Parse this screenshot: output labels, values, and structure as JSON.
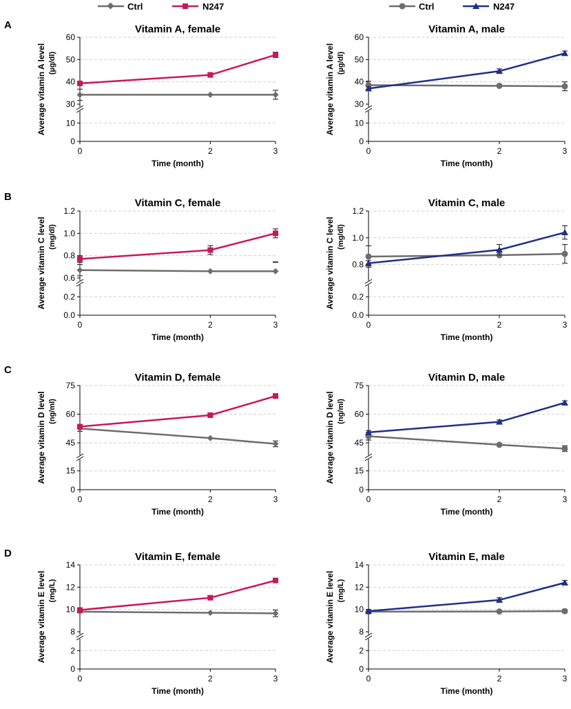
{
  "panel_letters": [
    "A",
    "B",
    "C",
    "D"
  ],
  "legends": [
    {
      "items": [
        {
          "name": "Ctrl",
          "color": "#6d6d6d",
          "marker": "diamond"
        },
        {
          "name": "N247",
          "color": "#c8175d",
          "marker": "square"
        }
      ]
    },
    {
      "items": [
        {
          "name": "Ctrl",
          "color": "#6d6d6d",
          "marker": "circle"
        },
        {
          "name": "N247",
          "color": "#1f2f8c",
          "marker": "triangle"
        }
      ]
    }
  ],
  "chart_data": [
    {
      "type": "line",
      "title": "Vitamin A, female",
      "xlabel": "Time (month)",
      "ylabel_main": "Average vitamin A level",
      "ylabel_unit": "(µg/dl)",
      "x": [
        0,
        2,
        3
      ],
      "xticks": [
        "0",
        "2",
        "3"
      ],
      "y_lower_ticks": [
        0,
        10
      ],
      "y_upper_ticks": [
        30,
        40,
        50,
        60
      ],
      "y_lower_range": [
        0,
        15
      ],
      "y_upper_range": [
        30,
        60
      ],
      "grid": true,
      "series": [
        {
          "name": "Ctrl",
          "color": "#6d6d6d",
          "marker": "diamond",
          "values": [
            34.2,
            34.2,
            34.2
          ],
          "errors": [
            2.5,
            0,
            2.0
          ]
        },
        {
          "name": "N247",
          "color": "#c8175d",
          "marker": "square",
          "values": [
            39.3,
            43.1,
            52.1
          ],
          "errors": [
            0.8,
            1.0,
            1.2
          ]
        }
      ]
    },
    {
      "type": "line",
      "title": "Vitamin A, male",
      "xlabel": "Time (month)",
      "ylabel_main": "Average vitamin A level",
      "ylabel_unit": "(µg/dl)",
      "x": [
        0,
        2,
        3
      ],
      "xticks": [
        "0",
        "2",
        "3"
      ],
      "y_lower_ticks": [
        0,
        10
      ],
      "y_upper_ticks": [
        30,
        40,
        50,
        60
      ],
      "y_lower_range": [
        0,
        15
      ],
      "y_upper_range": [
        30,
        60
      ],
      "grid": true,
      "series": [
        {
          "name": "Ctrl",
          "color": "#6d6d6d",
          "marker": "circle",
          "values": [
            38.5,
            38.2,
            38.0
          ],
          "errors": [
            1.8,
            0,
            2.0
          ]
        },
        {
          "name": "N247",
          "color": "#1f2f8c",
          "marker": "triangle",
          "values": [
            37.0,
            44.8,
            52.8
          ],
          "errors": [
            0.8,
            1.0,
            1.0
          ]
        }
      ]
    },
    {
      "type": "line",
      "title": "Vitamin C, female",
      "xlabel": "Time (month)",
      "ylabel_main": "Average vitamin C level",
      "ylabel_unit": "(mg/dl)",
      "x": [
        0,
        2,
        3
      ],
      "xticks": [
        "0",
        "2",
        "3"
      ],
      "y_lower_ticks": [
        0.0,
        0.2
      ],
      "y_upper_ticks": [
        0.6,
        0.8,
        1.0,
        1.2
      ],
      "y_lower_range": [
        0,
        0.3
      ],
      "y_upper_range": [
        0.6,
        1.2
      ],
      "grid": true,
      "tick_decimals": 1,
      "series": [
        {
          "name": "Ctrl",
          "color": "#6d6d6d",
          "marker": "diamond",
          "values": [
            0.67,
            0.66,
            0.66
          ],
          "errors": [
            0.05,
            0,
            0.08
          ]
        },
        {
          "name": "N247",
          "color": "#c8175d",
          "marker": "square",
          "values": [
            0.77,
            0.85,
            1.0
          ],
          "errors": [
            0.03,
            0.04,
            0.04
          ]
        }
      ]
    },
    {
      "type": "line",
      "title": "Vitamin C, male",
      "xlabel": "Time (month)",
      "ylabel_main": "Average vitamin C level",
      "ylabel_unit": "(mg/dl)",
      "x": [
        0,
        2,
        3
      ],
      "xticks": [
        "0",
        "2",
        "3"
      ],
      "y_lower_ticks": [
        0.0,
        0.2
      ],
      "y_upper_ticks": [
        0.8,
        1.0,
        1.2
      ],
      "y_lower_range": [
        0,
        0.3
      ],
      "y_upper_range": [
        0.7,
        1.2
      ],
      "grid": true,
      "tick_decimals": 1,
      "series": [
        {
          "name": "Ctrl",
          "color": "#6d6d6d",
          "marker": "circle",
          "values": [
            0.86,
            0.87,
            0.88
          ],
          "errors": [
            0.08,
            0,
            0.07
          ]
        },
        {
          "name": "N247",
          "color": "#1f2f8c",
          "marker": "triangle",
          "values": [
            0.81,
            0.91,
            1.04
          ],
          "errors": [
            0.02,
            0.04,
            0.05
          ]
        }
      ]
    },
    {
      "type": "line",
      "title": "Vitamin D, female",
      "xlabel": "Time (month)",
      "ylabel_main": "Average vitamin D level",
      "ylabel_unit": "(ng/ml)",
      "x": [
        0,
        2,
        3
      ],
      "xticks": [
        "0",
        "2",
        "3"
      ],
      "y_lower_ticks": [
        0,
        15
      ],
      "y_upper_ticks": [
        45,
        60,
        75
      ],
      "y_lower_range": [
        0,
        22
      ],
      "y_upper_range": [
        40,
        75
      ],
      "grid": true,
      "series": [
        {
          "name": "Ctrl",
          "color": "#6d6d6d",
          "marker": "diamond",
          "values": [
            52.5,
            47.5,
            44.5
          ],
          "errors": [
            1.5,
            0,
            1.5
          ]
        },
        {
          "name": "N247",
          "color": "#c8175d",
          "marker": "square",
          "values": [
            53.5,
            59.5,
            69.5
          ],
          "errors": [
            1.0,
            1.2,
            1.2
          ]
        }
      ]
    },
    {
      "type": "line",
      "title": "Vitamin D, male",
      "xlabel": "Time (month)",
      "ylabel_main": "Average vitamin D level",
      "ylabel_unit": "(ng/ml)",
      "x": [
        0,
        2,
        3
      ],
      "xticks": [
        "0",
        "2",
        "3"
      ],
      "y_lower_ticks": [
        0,
        15
      ],
      "y_upper_ticks": [
        45,
        60,
        75
      ],
      "y_lower_range": [
        0,
        22
      ],
      "y_upper_range": [
        40,
        75
      ],
      "grid": true,
      "series": [
        {
          "name": "Ctrl",
          "color": "#6d6d6d",
          "marker": "circle",
          "values": [
            48.5,
            44.0,
            42.0
          ],
          "errors": [
            2.0,
            0,
            1.5
          ]
        },
        {
          "name": "N247",
          "color": "#1f2f8c",
          "marker": "triangle",
          "values": [
            50.5,
            56.0,
            66.0
          ],
          "errors": [
            1.0,
            1.0,
            1.0
          ]
        }
      ]
    },
    {
      "type": "line",
      "title": "Vitamin E, female",
      "xlabel": "Time (month)",
      "ylabel_main": "Average vitamin E level",
      "ylabel_unit": "(mg/L)",
      "x": [
        0,
        2,
        3
      ],
      "xticks": [
        "0",
        "2",
        "3"
      ],
      "y_lower_ticks": [
        0,
        2
      ],
      "y_upper_ticks": [
        8,
        10,
        12,
        14
      ],
      "y_lower_range": [
        0,
        3
      ],
      "y_upper_range": [
        8,
        14
      ],
      "grid": true,
      "series": [
        {
          "name": "Ctrl",
          "color": "#6d6d6d",
          "marker": "diamond",
          "values": [
            9.8,
            9.7,
            9.65
          ],
          "errors": [
            0.1,
            0,
            0.3
          ]
        },
        {
          "name": "N247",
          "color": "#c8175d",
          "marker": "square",
          "values": [
            9.95,
            11.05,
            12.6
          ],
          "errors": [
            0.15,
            0.15,
            0.15
          ]
        }
      ]
    },
    {
      "type": "line",
      "title": "Vitamin E, male",
      "xlabel": "Time (month)",
      "ylabel_main": "Average vitamin E level",
      "ylabel_unit": "(mg/L)",
      "x": [
        0,
        2,
        3
      ],
      "xticks": [
        "0",
        "2",
        "3"
      ],
      "y_lower_ticks": [
        0,
        2
      ],
      "y_upper_ticks": [
        8,
        10,
        12,
        14
      ],
      "y_lower_range": [
        0,
        3
      ],
      "y_upper_range": [
        8,
        14
      ],
      "grid": true,
      "series": [
        {
          "name": "Ctrl",
          "color": "#6d6d6d",
          "marker": "circle",
          "values": [
            9.8,
            9.82,
            9.85
          ],
          "errors": [
            0.15,
            0,
            0.15
          ]
        },
        {
          "name": "N247",
          "color": "#1f2f8c",
          "marker": "triangle",
          "values": [
            9.85,
            10.85,
            12.4
          ],
          "errors": [
            0.15,
            0.2,
            0.2
          ]
        }
      ]
    }
  ]
}
